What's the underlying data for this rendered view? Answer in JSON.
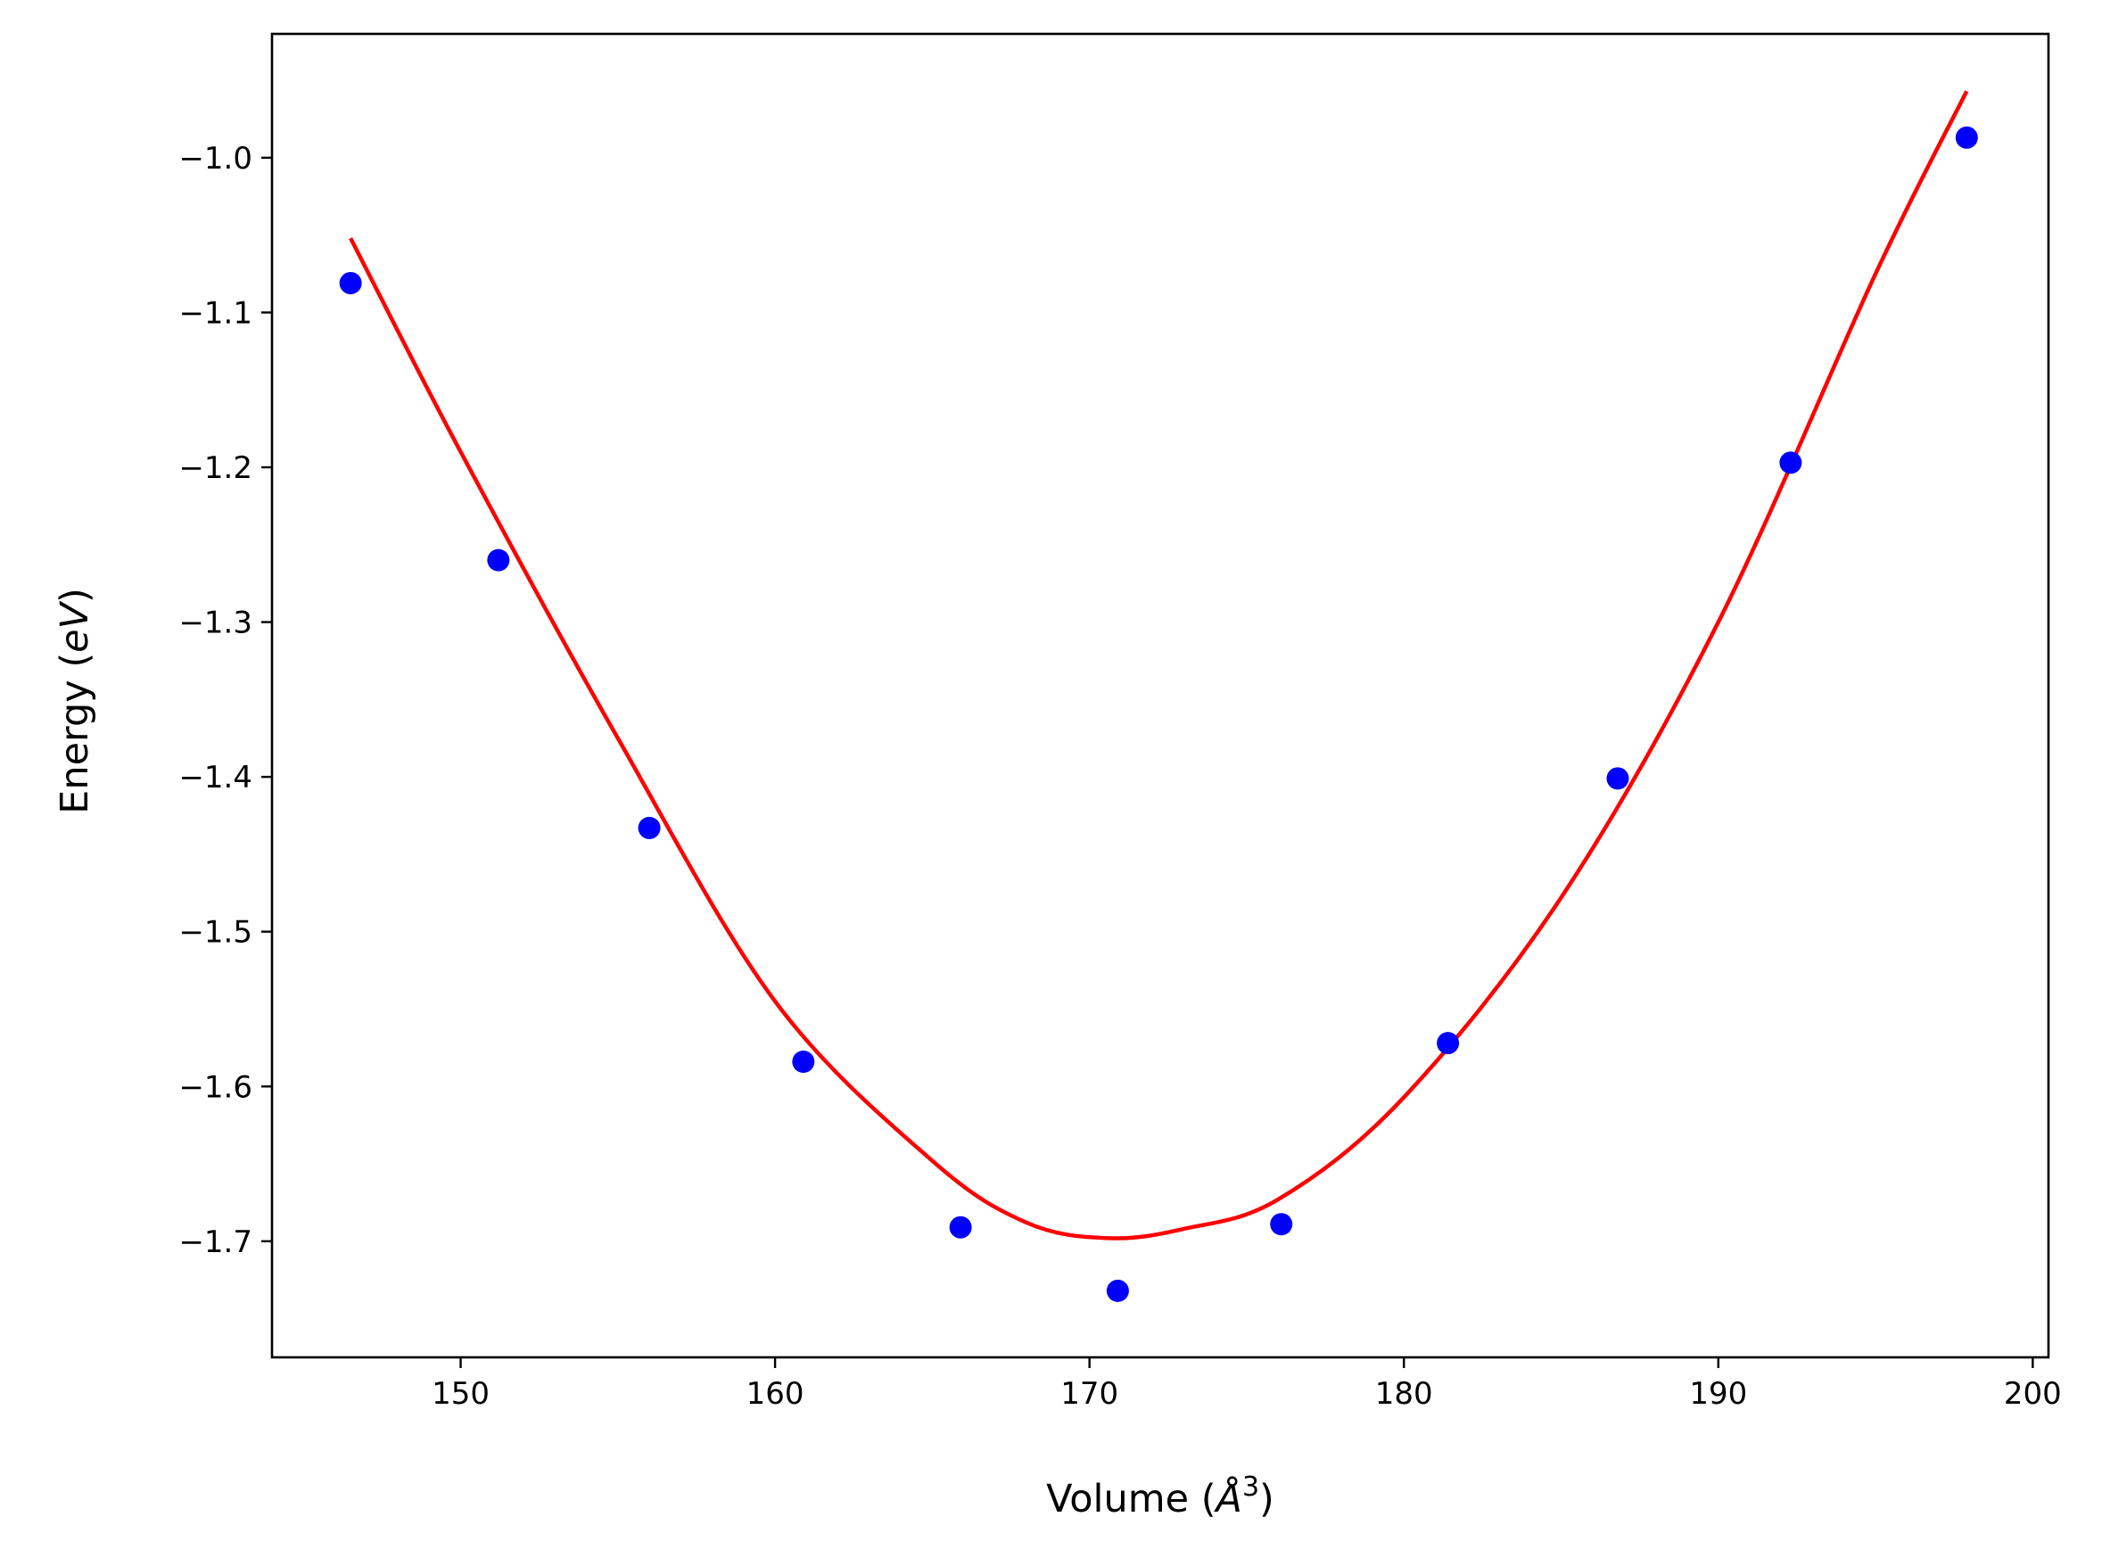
{
  "chart_data": {
    "type": "scatter",
    "title": "",
    "xlabel": "Volume (Å³)",
    "ylabel": "Energy (eV)",
    "xlabel_parts": {
      "prefix": "Volume (",
      "symbol": "Å",
      "exponent": "3",
      "suffix": ")"
    },
    "ylabel_parts": {
      "prefix": "Energy (",
      "italic": "eV",
      "suffix": ")"
    },
    "xlim": [
      144.0,
      200.5
    ],
    "ylim": [
      -1.775,
      -0.92
    ],
    "xticks": [
      150,
      160,
      170,
      180,
      190,
      200
    ],
    "yticks": [
      -1.0,
      -1.1,
      -1.2,
      -1.3,
      -1.4,
      -1.5,
      -1.6,
      -1.7
    ],
    "xtick_labels": [
      "150",
      "160",
      "170",
      "180",
      "190",
      "200"
    ],
    "ytick_labels": [
      "−1.0",
      "−1.1",
      "−1.2",
      "−1.3",
      "−1.4",
      "−1.5",
      "−1.6",
      "−1.7"
    ],
    "grid": false,
    "legend": "none",
    "series": [
      {
        "kind": "scatter",
        "color": "#0000ff",
        "points": [
          {
            "x": 146.5,
            "y": -1.081
          },
          {
            "x": 151.2,
            "y": -1.26
          },
          {
            "x": 156.0,
            "y": -1.433
          },
          {
            "x": 160.9,
            "y": -1.584
          },
          {
            "x": 165.9,
            "y": -1.691
          },
          {
            "x": 170.9,
            "y": -1.732
          },
          {
            "x": 176.1,
            "y": -1.689
          },
          {
            "x": 181.4,
            "y": -1.572
          },
          {
            "x": 186.8,
            "y": -1.401
          },
          {
            "x": 192.3,
            "y": -1.197
          },
          {
            "x": 197.9,
            "y": -0.987
          }
        ]
      },
      {
        "kind": "fit-curve",
        "color": "#ff0000",
        "curve_points": [
          {
            "x": 146.5,
            "y": -1.052
          },
          {
            "x": 150.0,
            "y": -1.19
          },
          {
            "x": 155.0,
            "y": -1.375
          },
          {
            "x": 160.0,
            "y": -1.545
          },
          {
            "x": 165.0,
            "y": -1.648
          },
          {
            "x": 168.0,
            "y": -1.688
          },
          {
            "x": 170.6,
            "y": -1.698
          },
          {
            "x": 173.0,
            "y": -1.692
          },
          {
            "x": 176.0,
            "y": -1.673
          },
          {
            "x": 180.0,
            "y": -1.607
          },
          {
            "x": 185.0,
            "y": -1.478
          },
          {
            "x": 190.0,
            "y": -1.3
          },
          {
            "x": 195.0,
            "y": -1.075
          },
          {
            "x": 197.9,
            "y": -0.957
          }
        ]
      }
    ]
  }
}
